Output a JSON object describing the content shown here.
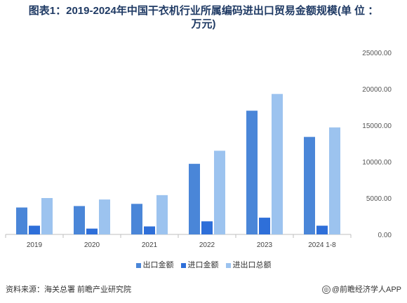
{
  "title_line1": "图表1：2019-2024年中国干衣机行业所属编码进出口贸易金额规模(单 位 ：",
  "title_line2": "万元)",
  "chart_data": {
    "type": "bar",
    "categories": [
      "2019",
      "2020",
      "2021",
      "2022",
      "2023",
      "2024 1-8"
    ],
    "series": [
      {
        "name": "出口金额",
        "color": "#4a86d8",
        "values": [
          3700,
          3900,
          4200,
          9700,
          17000,
          13400
        ]
      },
      {
        "name": "进口金额",
        "color": "#2e6fd9",
        "values": [
          1200,
          800,
          1100,
          1800,
          2300,
          1200
        ]
      },
      {
        "name": "进出口总额",
        "color": "#9cc3ef",
        "values": [
          5000,
          4800,
          5400,
          11500,
          19300,
          14700
        ]
      }
    ],
    "ylim": [
      0,
      25000
    ],
    "yticks": [
      "0.00",
      "5000.00",
      "10000.00",
      "15000.00",
      "20000.00",
      "25000.00"
    ],
    "legend_position": "bottom"
  },
  "footer": {
    "source": "资料来源：海关总署 前瞻产业研究院",
    "brand": "@前瞻经济学人APP"
  }
}
